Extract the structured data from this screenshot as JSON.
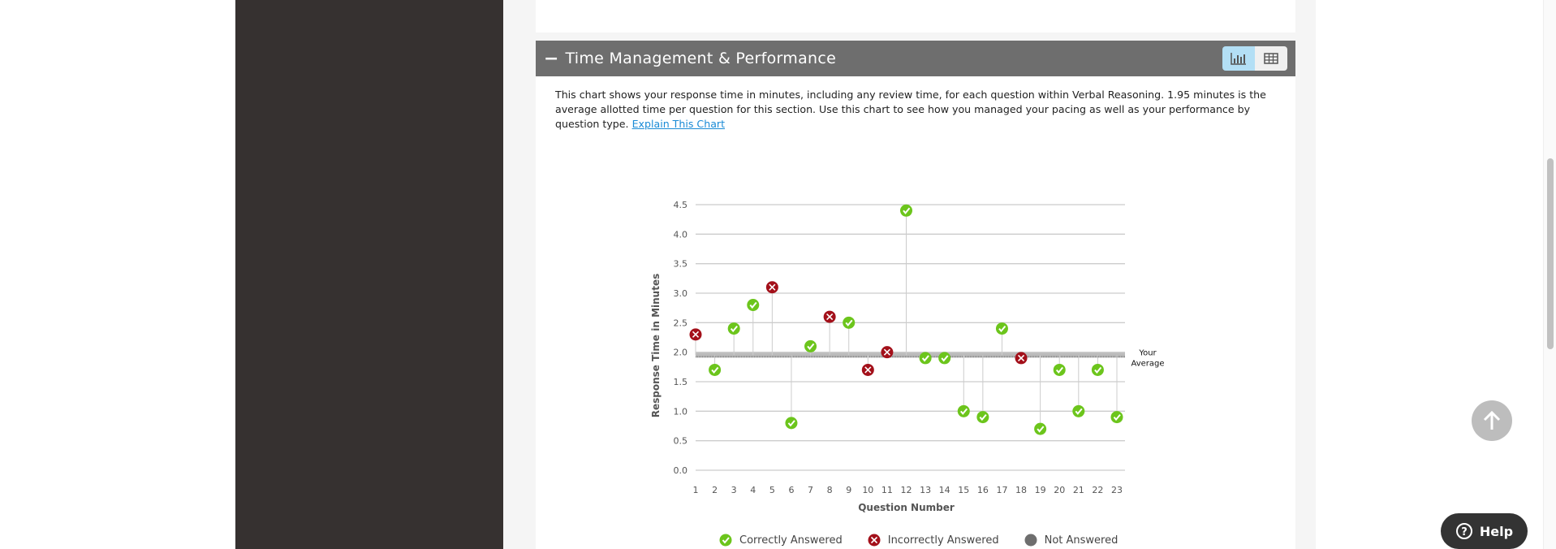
{
  "section": {
    "title": "Time Management & Performance",
    "collapse_icon": "minus-icon",
    "description": "This chart shows your response time in minutes, including any review time, for each question within Verbal Reasoning. 1.95 minutes is the average allotted time per question for this section. Use this chart to see how you managed your pacing as well as your performance by question type.",
    "explain_link": "Explain This Chart"
  },
  "help": {
    "label": "Help"
  },
  "colors": {
    "correct": "#6cc51c",
    "incorrect": "#a3101a",
    "not_answered": "#6e6e6e",
    "header": "#6e6e6e"
  },
  "chart_data": {
    "type": "scatter",
    "xlabel": "Question Number",
    "ylabel": "Response Time in Minutes",
    "ylim": [
      0,
      4.5
    ],
    "yticks": [
      "0.0",
      "0.5",
      "1.0",
      "1.5",
      "2.0",
      "2.5",
      "3.0",
      "3.5",
      "4.0",
      "4.5"
    ],
    "x": [
      1,
      2,
      3,
      4,
      5,
      6,
      7,
      8,
      9,
      10,
      11,
      12,
      13,
      14,
      15,
      16,
      17,
      18,
      19,
      20,
      21,
      22,
      23
    ],
    "values": [
      2.3,
      1.7,
      2.4,
      2.8,
      3.1,
      0.8,
      2.1,
      2.6,
      2.5,
      1.7,
      2.0,
      4.4,
      1.9,
      1.9,
      1.0,
      0.9,
      2.4,
      1.9,
      0.7,
      1.7,
      1.0,
      1.7,
      0.9
    ],
    "status": [
      "incorrect",
      "correct",
      "correct",
      "correct",
      "incorrect",
      "correct",
      "correct",
      "incorrect",
      "correct",
      "incorrect",
      "incorrect",
      "correct",
      "correct",
      "correct",
      "correct",
      "correct",
      "correct",
      "incorrect",
      "correct",
      "correct",
      "correct",
      "correct",
      "correct"
    ],
    "average": 1.95,
    "average_label_1": "Your",
    "average_label_2": "Average",
    "legend": [
      {
        "key": "correct",
        "label": "Correctly Answered"
      },
      {
        "key": "incorrect",
        "label": "Incorrectly Answered"
      },
      {
        "key": "not_answered",
        "label": "Not Answered"
      }
    ],
    "legend_position": "bottom"
  }
}
